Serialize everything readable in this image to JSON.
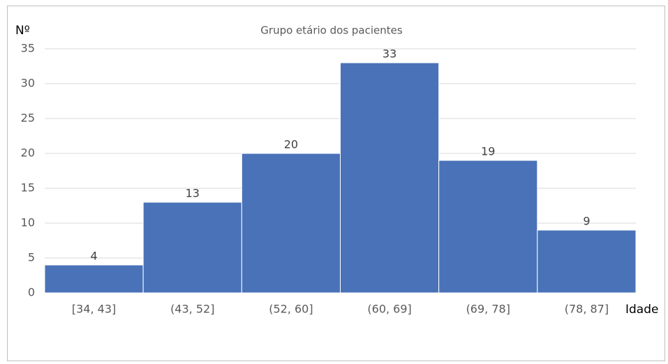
{
  "chart_data": {
    "type": "bar",
    "title": "Grupo etário dos pacientes",
    "y_label": "Nº",
    "x_label": "Idade",
    "categories": [
      "[34, 43]",
      "(43, 52]",
      "(52, 60]",
      "(60, 69]",
      "(69, 78]",
      "(78, 87]"
    ],
    "values": [
      4,
      13,
      20,
      33,
      19,
      9
    ],
    "color": "#4a72b8",
    "ylim": [
      0,
      35
    ],
    "yticks": [
      0,
      5,
      10,
      15,
      20,
      25,
      30,
      35
    ],
    "grid": true
  }
}
